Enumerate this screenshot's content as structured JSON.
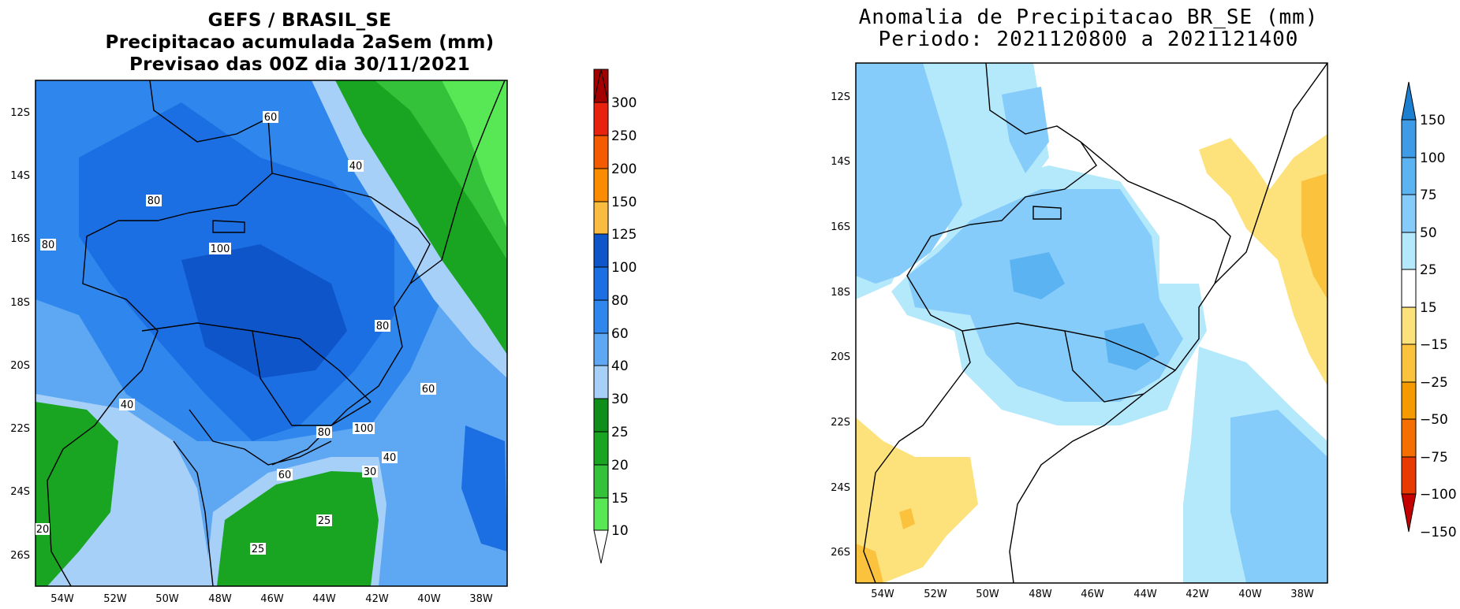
{
  "left_panel": {
    "title_lines": [
      "GEFS / BRASIL_SE",
      "Precipitacao acumulada 2aSem (mm)",
      "Previsao das 00Z dia 30/11/2021"
    ],
    "y_ticks": [
      "12S",
      "14S",
      "16S",
      "18S",
      "20S",
      "22S",
      "24S",
      "26S"
    ],
    "x_ticks": [
      "54W",
      "52W",
      "50W",
      "48W",
      "46W",
      "44W",
      "42W",
      "40W",
      "38W"
    ],
    "contour_labels": [
      "60",
      "40",
      "80",
      "80",
      "100",
      "80",
      "60",
      "40",
      "80",
      "100",
      "40",
      "30",
      "60",
      "25",
      "25",
      "20"
    ],
    "colorbar": {
      "labels": [
        "300",
        "250",
        "200",
        "150",
        "125",
        "100",
        "80",
        "60",
        "40",
        "30",
        "25",
        "20",
        "15",
        "10"
      ],
      "colors": [
        "#a50000",
        "#e8220f",
        "#f45b00",
        "#fb8c00",
        "#f9bc40",
        "#0e55c9",
        "#1b6fe3",
        "#2f86ec",
        "#5ea7f3",
        "#a7d0f8",
        "#0f8e1a",
        "#19a521",
        "#33c23a",
        "#58e855"
      ]
    }
  },
  "right_panel": {
    "title_lines": [
      "Anomalia de Precipitacao BR_SE (mm)",
      "Periodo: 2021120800 a 2021121400"
    ],
    "y_ticks": [
      "12S",
      "14S",
      "16S",
      "18S",
      "20S",
      "22S",
      "24S",
      "26S"
    ],
    "x_ticks": [
      "54W",
      "52W",
      "50W",
      "48W",
      "46W",
      "44W",
      "42W",
      "40W",
      "38W"
    ],
    "colorbar": {
      "labels": [
        "150",
        "100",
        "75",
        "50",
        "25",
        "15",
        "−15",
        "−25",
        "−50",
        "−75",
        "−100",
        "−150"
      ],
      "colors": [
        "#1c7fd0",
        "#3f9be6",
        "#5cb3f2",
        "#86ccfb",
        "#b4e8fb",
        "#ffffff",
        "#fde27c",
        "#fbc23e",
        "#f59a00",
        "#f56e00",
        "#e83a00",
        "#c40000"
      ]
    }
  }
}
